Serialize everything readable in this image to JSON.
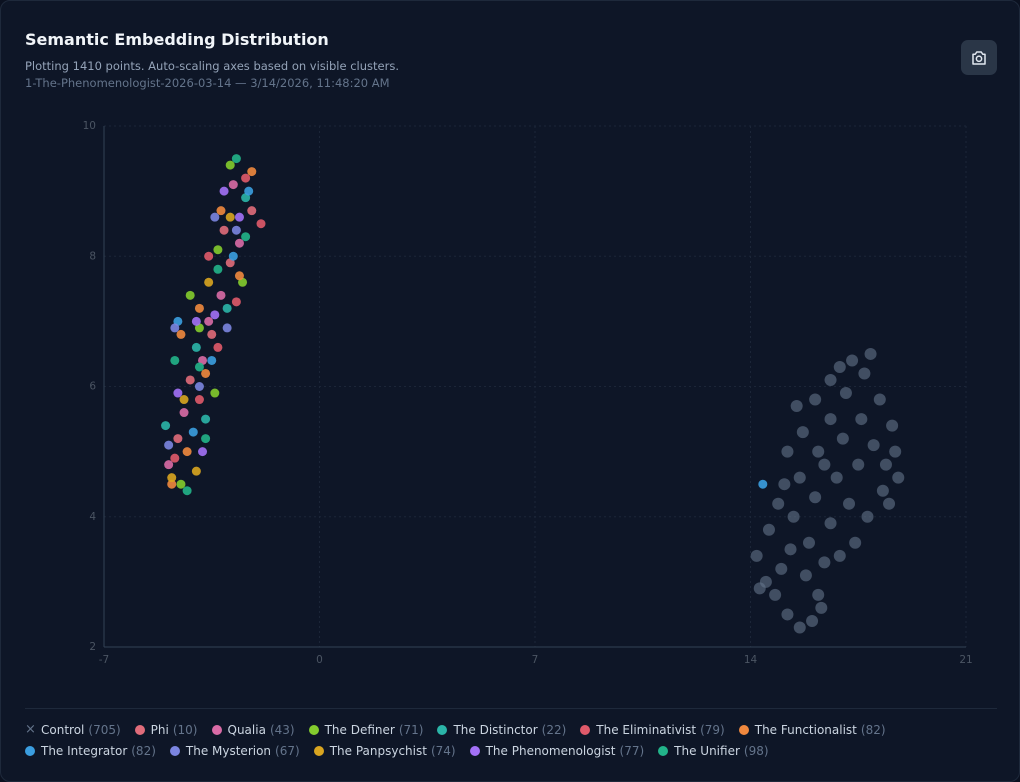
{
  "chart_data": {
    "type": "scatter",
    "title": "Semantic Embedding Distribution",
    "subtitle": "Plotting 1410 points. Auto-scaling axes based on visible clusters.",
    "caption": "1-The-Phenomenologist-2026-03-14 — 3/14/2026, 11:48:20 AM",
    "xlim": [
      -7,
      21
    ],
    "xticks": [
      -7,
      0,
      7,
      14,
      21
    ],
    "ylim": [
      2,
      10
    ],
    "yticks": [
      2,
      4,
      6,
      8,
      10
    ],
    "grid": true,
    "series": [
      {
        "name": "Control",
        "count": "(705)",
        "color": "#64748b",
        "marker": "x",
        "points": [
          [
            14.2,
            3.4
          ],
          [
            14.5,
            3.0
          ],
          [
            14.8,
            2.8
          ],
          [
            15.2,
            2.5
          ],
          [
            15.6,
            2.3
          ],
          [
            16.0,
            2.4
          ],
          [
            16.2,
            2.8
          ],
          [
            15.8,
            3.1
          ],
          [
            15.3,
            3.5
          ],
          [
            14.6,
            3.8
          ],
          [
            14.9,
            4.2
          ],
          [
            15.4,
            4.0
          ],
          [
            15.9,
            3.6
          ],
          [
            16.4,
            3.3
          ],
          [
            16.6,
            3.9
          ],
          [
            16.1,
            4.3
          ],
          [
            15.6,
            4.6
          ],
          [
            15.2,
            5.0
          ],
          [
            15.7,
            5.3
          ],
          [
            16.2,
            5.0
          ],
          [
            16.8,
            4.6
          ],
          [
            17.2,
            4.2
          ],
          [
            17.5,
            4.8
          ],
          [
            17.0,
            5.2
          ],
          [
            16.6,
            5.5
          ],
          [
            16.1,
            5.8
          ],
          [
            16.6,
            6.1
          ],
          [
            17.1,
            5.9
          ],
          [
            17.6,
            5.5
          ],
          [
            18.0,
            5.1
          ],
          [
            18.4,
            4.8
          ],
          [
            18.6,
            5.4
          ],
          [
            18.2,
            5.8
          ],
          [
            17.7,
            6.2
          ],
          [
            17.9,
            6.5
          ],
          [
            18.7,
            5.0
          ],
          [
            18.8,
            4.6
          ],
          [
            18.3,
            4.4
          ],
          [
            17.8,
            4.0
          ],
          [
            17.4,
            3.6
          ],
          [
            16.9,
            3.4
          ],
          [
            16.3,
            2.6
          ],
          [
            15.0,
            3.2
          ],
          [
            14.3,
            2.9
          ],
          [
            15.5,
            5.7
          ],
          [
            16.9,
            6.3
          ],
          [
            17.3,
            6.4
          ],
          [
            18.5,
            4.2
          ],
          [
            15.1,
            4.5
          ],
          [
            16.4,
            4.8
          ]
        ]
      },
      {
        "name": "Phi",
        "count": "(10)",
        "color": "#e06c7a",
        "points": [
          [
            -4.6,
            5.2
          ],
          [
            -3.5,
            6.8
          ],
          [
            -2.9,
            7.9
          ],
          [
            -2.2,
            8.7
          ],
          [
            -4.2,
            6.1
          ],
          [
            -3.1,
            8.4
          ]
        ]
      },
      {
        "name": "Qualia",
        "count": "(43)",
        "color": "#d96ba6",
        "points": [
          [
            -4.4,
            5.6
          ],
          [
            -3.8,
            6.4
          ],
          [
            -3.2,
            7.4
          ],
          [
            -2.6,
            8.2
          ],
          [
            -2.8,
            9.1
          ],
          [
            -4.9,
            4.8
          ],
          [
            -3.6,
            7.0
          ]
        ]
      },
      {
        "name": "The Definer",
        "count": "(71)",
        "color": "#84cc2e",
        "points": [
          [
            -4.5,
            4.5
          ],
          [
            -3.4,
            5.9
          ],
          [
            -3.9,
            6.9
          ],
          [
            -2.5,
            7.6
          ],
          [
            -2.9,
            9.4
          ],
          [
            -4.2,
            7.4
          ],
          [
            -3.3,
            8.1
          ]
        ]
      },
      {
        "name": "The Distinctor",
        "count": "(22)",
        "color": "#2bb5a8",
        "points": [
          [
            -5.0,
            5.4
          ],
          [
            -4.0,
            6.6
          ],
          [
            -3.0,
            7.2
          ],
          [
            -2.4,
            8.9
          ],
          [
            -3.7,
            5.5
          ]
        ]
      },
      {
        "name": "The Eliminativist",
        "count": "(79)",
        "color": "#e05a6a",
        "points": [
          [
            -4.7,
            4.9
          ],
          [
            -3.9,
            5.8
          ],
          [
            -3.3,
            6.6
          ],
          [
            -2.7,
            7.3
          ],
          [
            -1.9,
            8.5
          ],
          [
            -2.4,
            9.2
          ],
          [
            -3.6,
            8.0
          ]
        ]
      },
      {
        "name": "The Functionalist",
        "count": "(82)",
        "color": "#f0883e",
        "points": [
          [
            -4.8,
            4.5
          ],
          [
            -4.3,
            5.0
          ],
          [
            -3.7,
            6.2
          ],
          [
            -3.9,
            7.2
          ],
          [
            -2.6,
            7.7
          ],
          [
            -3.2,
            8.7
          ],
          [
            -2.2,
            9.3
          ],
          [
            -4.5,
            6.8
          ]
        ]
      },
      {
        "name": "The Integrator",
        "count": "(82)",
        "color": "#3b9ee0",
        "points": [
          [
            14.4,
            4.5
          ],
          [
            -4.1,
            5.3
          ],
          [
            -3.5,
            6.4
          ],
          [
            -2.8,
            8.0
          ],
          [
            -2.3,
            9.0
          ],
          [
            -4.6,
            7.0
          ]
        ]
      },
      {
        "name": "The Mysterion",
        "count": "(67)",
        "color": "#7b85e0",
        "points": [
          [
            -4.9,
            5.1
          ],
          [
            -4.7,
            6.9
          ],
          [
            -3.9,
            6.0
          ],
          [
            -3.4,
            8.6
          ],
          [
            -2.7,
            8.4
          ],
          [
            -3.0,
            6.9
          ]
        ]
      },
      {
        "name": "The Panpsychist",
        "count": "(74)",
        "color": "#d9a520",
        "points": [
          [
            -4.8,
            4.6
          ],
          [
            -4.4,
            5.8
          ],
          [
            -3.6,
            7.6
          ],
          [
            -2.9,
            8.6
          ],
          [
            -4.0,
            4.7
          ]
        ]
      },
      {
        "name": "The Phenomenologist",
        "count": "(77)",
        "color": "#a371f7",
        "points": [
          [
            -4.6,
            5.9
          ],
          [
            -4.0,
            7.0
          ],
          [
            -3.4,
            7.1
          ],
          [
            -2.6,
            8.6
          ],
          [
            -3.8,
            5.0
          ],
          [
            -3.1,
            9.0
          ]
        ]
      },
      {
        "name": "The Unifier",
        "count": "(98)",
        "color": "#22b48a",
        "points": [
          [
            -4.3,
            4.4
          ],
          [
            -3.9,
            6.3
          ],
          [
            -3.3,
            7.8
          ],
          [
            -2.4,
            8.3
          ],
          [
            -2.7,
            9.5
          ],
          [
            -4.7,
            6.4
          ],
          [
            -3.7,
            5.2
          ]
        ]
      }
    ]
  }
}
